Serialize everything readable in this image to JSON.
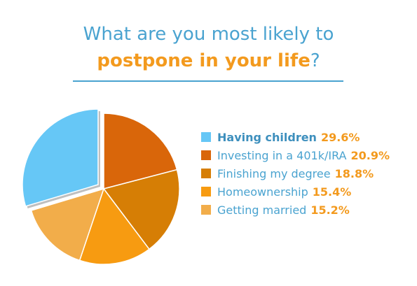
{
  "title": {
    "line1": "What are you most likely to",
    "line2_highlight": "postpone in your life",
    "line2_tail": "?"
  },
  "chart_data": {
    "type": "pie",
    "exploded": "Having children",
    "slices": [
      {
        "label": "Having children",
        "value": 29.6,
        "display": "29.6%",
        "color": "#66c7f6"
      },
      {
        "label": "Investing in a 401k/IRA",
        "value": 20.9,
        "display": "20.9%",
        "color": "#d9660a"
      },
      {
        "label": "Finishing my degree",
        "value": 18.8,
        "display": "18.8%",
        "color": "#d67e05"
      },
      {
        "label": "Homeownership",
        "value": 15.4,
        "display": "15.4%",
        "color": "#f79b11"
      },
      {
        "label": "Getting married",
        "value": 15.2,
        "display": "15.2%",
        "color": "#f2ad4a"
      }
    ]
  },
  "colors": {
    "title": "#4aa3d0",
    "accent": "#f39a1e"
  }
}
